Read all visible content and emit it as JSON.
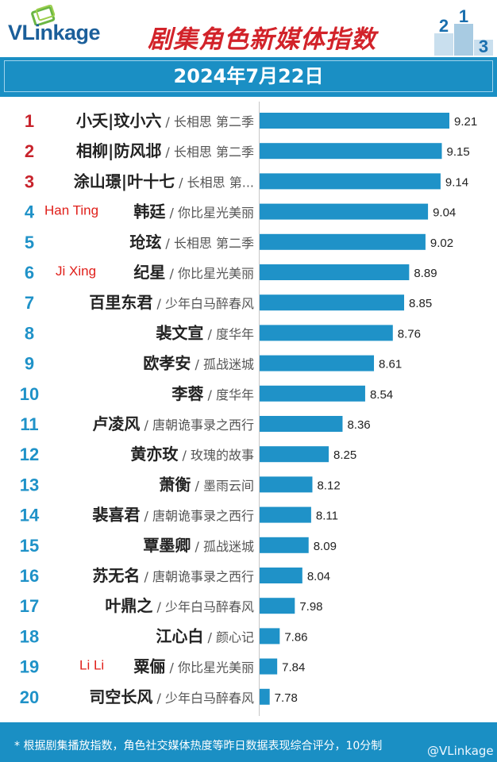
{
  "header": {
    "logo_text_a": "VL",
    "logo_text_b": "inkage",
    "title": "剧集角色新媒体指数",
    "podium": [
      "2",
      "1",
      "3"
    ]
  },
  "date": "2024年7月22日",
  "footer": {
    "note": "* 根据剧集播放指数，角色社交媒体热度等昨日数据表现综合评分，10分制",
    "brand": "@VLinkage"
  },
  "colors": {
    "brand_blue": "#1a8fc4",
    "bar": "#1f92c8",
    "rank_top3": "#c8232c",
    "rank_other": "#1f92c8",
    "annotation": "#e0201b",
    "title": "#d2232a"
  },
  "chart_data": {
    "type": "bar",
    "orientation": "horizontal",
    "title": "剧集角色新媒体指数",
    "xlim": [
      7.7,
      9.3
    ],
    "rows": [
      {
        "rank": "1",
        "name": "小夭|玟小六",
        "show": "长相思 第二季",
        "value": 9.21,
        "label": "9.21",
        "note": ""
      },
      {
        "rank": "2",
        "name": "相柳|防风邶",
        "show": "长相思 第二季",
        "value": 9.15,
        "label": "9.15",
        "note": ""
      },
      {
        "rank": "3",
        "name": "涂山璟|叶十七",
        "show": "长相思 第...",
        "value": 9.14,
        "label": "9.14",
        "note": ""
      },
      {
        "rank": "4",
        "name": "韩廷",
        "show": "你比星光美丽",
        "value": 9.04,
        "label": "9.04",
        "note": "Han Ting"
      },
      {
        "rank": "5",
        "name": "玱玹",
        "show": "长相思 第二季",
        "value": 9.02,
        "label": "9.02",
        "note": ""
      },
      {
        "rank": "6",
        "name": "纪星",
        "show": "你比星光美丽",
        "value": 8.89,
        "label": "8.89",
        "note": "Ji Xing"
      },
      {
        "rank": "7",
        "name": "百里东君",
        "show": "少年白马醉春风",
        "value": 8.85,
        "label": "8.85",
        "note": ""
      },
      {
        "rank": "8",
        "name": "裴文宣",
        "show": "度华年",
        "value": 8.76,
        "label": "8.76",
        "note": ""
      },
      {
        "rank": "9",
        "name": "欧孝安",
        "show": "孤战迷城",
        "value": 8.61,
        "label": "8.61",
        "note": ""
      },
      {
        "rank": "10",
        "name": "李蓉",
        "show": "度华年",
        "value": 8.54,
        "label": "8.54",
        "note": ""
      },
      {
        "rank": "11",
        "name": "卢凌风",
        "show": "唐朝诡事录之西行",
        "value": 8.36,
        "label": "8.36",
        "note": ""
      },
      {
        "rank": "12",
        "name": "黄亦玫",
        "show": "玫瑰的故事",
        "value": 8.25,
        "label": "8.25",
        "note": ""
      },
      {
        "rank": "13",
        "name": "萧衡",
        "show": "墨雨云间",
        "value": 8.12,
        "label": "8.12",
        "note": ""
      },
      {
        "rank": "14",
        "name": "裴喜君",
        "show": "唐朝诡事录之西行",
        "value": 8.11,
        "label": "8.11",
        "note": ""
      },
      {
        "rank": "15",
        "name": "覃墨卿",
        "show": "孤战迷城",
        "value": 8.09,
        "label": "8.09",
        "note": ""
      },
      {
        "rank": "16",
        "name": "苏无名",
        "show": "唐朝诡事录之西行",
        "value": 8.04,
        "label": "8.04",
        "note": ""
      },
      {
        "rank": "17",
        "name": "叶鼎之",
        "show": "少年白马醉春风",
        "value": 7.98,
        "label": "7.98",
        "note": ""
      },
      {
        "rank": "18",
        "name": "江心白",
        "show": "颜心记",
        "value": 7.86,
        "label": "7.86",
        "note": ""
      },
      {
        "rank": "19",
        "name": "粟俪",
        "show": "你比星光美丽",
        "value": 7.84,
        "label": "7.84",
        "note": "Li Li"
      },
      {
        "rank": "20",
        "name": "司空长风",
        "show": "少年白马醉春风",
        "value": 7.78,
        "label": "7.78",
        "note": ""
      }
    ]
  }
}
